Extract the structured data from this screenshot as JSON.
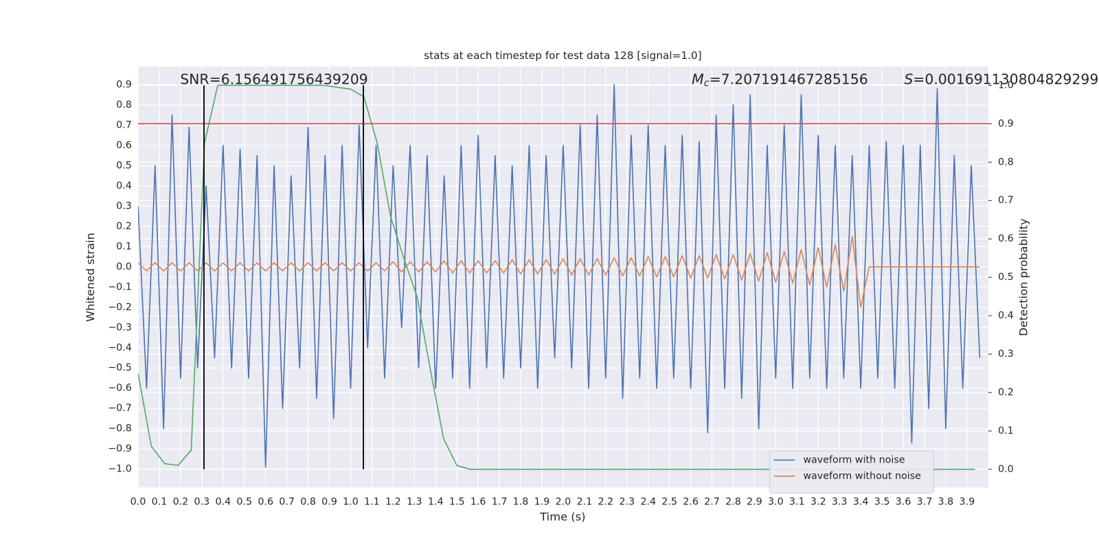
{
  "chart_data": {
    "type": "line",
    "title": "stats at each timestep for test data 128 [signal=1.0]",
    "xlabel": "Time (s)",
    "ylabel": "Whitened strain",
    "y2label": "Detection probability",
    "annotations": {
      "snr": "SNR=6.156491756439209",
      "mc": {
        "symbol": "M",
        "subscript": "c",
        "text": "=7.207191467285156"
      },
      "s": {
        "symbol": "S",
        "text": "=0.001691130804829299"
      }
    },
    "xlim": [
      0,
      4.0
    ],
    "ylim": [
      -1.09,
      0.99
    ],
    "y2lim": [
      -0.047,
      1.049
    ],
    "xticks": [
      {
        "value": 0,
        "label": "0.0"
      },
      0.1,
      0.2,
      0.3,
      0.4,
      0.5,
      0.6,
      0.7,
      0.8,
      0.9,
      {
        "value": 1,
        "label": "1.0"
      },
      1.1,
      1.2,
      1.3,
      1.4,
      1.5,
      1.6,
      1.7,
      1.8,
      1.9,
      {
        "value": 2,
        "label": "2.0"
      },
      2.1,
      2.2,
      2.3,
      2.4,
      2.5,
      2.6,
      2.7,
      2.8,
      2.9,
      {
        "value": 3,
        "label": "3.0"
      },
      3.1,
      3.2,
      3.3,
      3.4,
      3.5,
      3.6,
      3.7,
      3.8,
      3.9
    ],
    "yticks": [
      {
        "value": -1,
        "label": "−1.0"
      },
      {
        "value": -0.9,
        "label": "−0.9"
      },
      {
        "value": -0.8,
        "label": "−0.8"
      },
      {
        "value": -0.7,
        "label": "−0.7"
      },
      {
        "value": -0.6,
        "label": "−0.6"
      },
      {
        "value": -0.5,
        "label": "−0.5"
      },
      {
        "value": -0.4,
        "label": "−0.4"
      },
      {
        "value": -0.3,
        "label": "−0.3"
      },
      {
        "value": -0.2,
        "label": "−0.2"
      },
      {
        "value": -0.1,
        "label": "−0.1"
      },
      {
        "value": 0,
        "label": "0.0"
      },
      0.1,
      0.2,
      0.3,
      0.4,
      0.5,
      0.6,
      0.7,
      0.8,
      0.9
    ],
    "y2ticks": [
      {
        "value": 0,
        "label": "0.0"
      },
      0.1,
      0.2,
      0.3,
      0.4,
      0.5,
      0.6,
      0.7,
      0.8,
      0.9,
      {
        "value": 1,
        "label": "1.0"
      }
    ],
    "grid": true,
    "legend": "lower right",
    "x": [
      0,
      0.04,
      0.08,
      0.12,
      0.16,
      0.2,
      0.24,
      0.28,
      0.32,
      0.36,
      0.4,
      0.44,
      0.48,
      0.52,
      0.56,
      0.6,
      0.64,
      0.68,
      0.72,
      0.76,
      0.8,
      0.84,
      0.88,
      0.92,
      0.96,
      1.0,
      1.04,
      1.08,
      1.12,
      1.16,
      1.2,
      1.24,
      1.28,
      1.32,
      1.36,
      1.4,
      1.44,
      1.48,
      1.52,
      1.56,
      1.6,
      1.64,
      1.68,
      1.72,
      1.76,
      1.8,
      1.84,
      1.88,
      1.92,
      1.96,
      2.0,
      2.04,
      2.08,
      2.12,
      2.16,
      2.2,
      2.24,
      2.28,
      2.32,
      2.36,
      2.4,
      2.44,
      2.48,
      2.52,
      2.56,
      2.6,
      2.64,
      2.68,
      2.72,
      2.76,
      2.8,
      2.84,
      2.88,
      2.92,
      2.96,
      3.0,
      3.04,
      3.08,
      3.12,
      3.16,
      3.2,
      3.24,
      3.28,
      3.32,
      3.36,
      3.4,
      3.44,
      3.48,
      3.52,
      3.56,
      3.6,
      3.64,
      3.68,
      3.72,
      3.76,
      3.8,
      3.84,
      3.88,
      3.92,
      3.96
    ],
    "series": [
      {
        "name": "waveform with noise",
        "color": "#4c72b0",
        "values": [
          0.3,
          -0.6,
          0.5,
          -0.8,
          0.75,
          -0.55,
          0.69,
          -0.5,
          0.4,
          -0.45,
          0.6,
          -0.5,
          0.58,
          -0.55,
          0.55,
          -0.99,
          0.5,
          -0.7,
          0.45,
          -0.5,
          0.69,
          -0.65,
          0.55,
          -0.75,
          0.6,
          -0.6,
          0.7,
          -0.4,
          0.6,
          -0.55,
          0.5,
          -0.3,
          0.6,
          -0.5,
          0.55,
          -0.6,
          0.45,
          -0.55,
          0.6,
          -0.6,
          0.65,
          -0.5,
          0.55,
          -0.55,
          0.5,
          -0.5,
          0.6,
          -0.6,
          0.55,
          -0.45,
          0.6,
          -0.5,
          0.7,
          -0.6,
          0.75,
          -0.55,
          0.9,
          -0.65,
          0.65,
          -0.55,
          0.7,
          -0.6,
          0.6,
          -0.55,
          0.65,
          -0.6,
          0.62,
          -0.82,
          0.75,
          -0.6,
          0.8,
          -0.65,
          0.85,
          -0.8,
          0.6,
          -0.55,
          0.7,
          -0.6,
          0.85,
          -0.55,
          0.65,
          -0.6,
          0.6,
          -0.55,
          0.55,
          -0.6,
          0.6,
          -0.55,
          0.62,
          -0.6,
          0.6,
          -0.87,
          0.6,
          -0.7,
          0.88,
          -0.8,
          0.55,
          -0.6,
          0.5,
          -0.45
        ]
      },
      {
        "name": "waveform without noise",
        "color": "#dd8452",
        "values": [
          0.02,
          -0.02,
          0.02,
          -0.02,
          0.02,
          -0.02,
          0.02,
          -0.02,
          0.02,
          -0.02,
          0.02,
          -0.02,
          0.02,
          -0.02,
          0.02,
          -0.02,
          0.02,
          -0.02,
          0.02,
          -0.02,
          0.02,
          -0.02,
          0.02,
          -0.02,
          0.02,
          -0.02,
          0.02,
          -0.02,
          0.02,
          -0.02,
          0.025,
          -0.025,
          0.025,
          -0.025,
          0.025,
          -0.025,
          0.03,
          -0.03,
          0.03,
          -0.03,
          0.03,
          -0.03,
          0.03,
          -0.03,
          0.035,
          -0.035,
          0.035,
          -0.035,
          0.035,
          -0.035,
          0.04,
          -0.04,
          0.04,
          -0.04,
          0.04,
          -0.04,
          0.045,
          -0.045,
          0.045,
          -0.045,
          0.05,
          -0.05,
          0.05,
          -0.05,
          0.055,
          -0.055,
          0.055,
          -0.055,
          0.06,
          -0.06,
          0.06,
          -0.065,
          0.065,
          -0.07,
          0.07,
          -0.075,
          0.075,
          -0.08,
          0.085,
          -0.09,
          0.095,
          -0.1,
          0.11,
          -0.12,
          0.15,
          -0.2,
          0,
          0,
          0,
          0,
          0,
          0,
          0,
          0,
          0,
          0,
          0,
          0,
          0,
          0
        ]
      },
      {
        "color": "#55a868",
        "axis": "y2",
        "x": [
          0,
          0.0625,
          0.125,
          0.1875,
          0.25,
          0.3125,
          0.375,
          0.4375,
          0.5,
          0.5625,
          0.625,
          0.6875,
          0.75,
          0.8125,
          0.875,
          0.9375,
          1.0,
          1.0625,
          1.125,
          1.1875,
          1.25,
          1.3125,
          1.375,
          1.4375,
          1.5,
          1.5625,
          1.625,
          1.6875,
          1.75,
          1.8125,
          1.875,
          1.9375,
          2.0,
          2.0625,
          2.125,
          2.1875,
          2.25,
          2.3125,
          2.375,
          2.4375,
          2.5,
          2.5625,
          2.625,
          2.6875,
          2.75,
          2.8125,
          2.875,
          2.9375,
          3.0,
          3.0625,
          3.125,
          3.1875,
          3.25,
          3.3125,
          3.375,
          3.4375,
          3.5,
          3.5625,
          3.625,
          3.6875,
          3.75,
          3.8125,
          3.875,
          3.9375
        ],
        "values": [
          0.25,
          0.06,
          0.015,
          0.01,
          0.05,
          0.85,
          1.0,
          1.0,
          1.0,
          1.0,
          1.0,
          1.0,
          1.0,
          1.0,
          1.0,
          0.995,
          0.99,
          0.97,
          0.85,
          0.66,
          0.55,
          0.45,
          0.26,
          0.08,
          0.01,
          0,
          0,
          0,
          0,
          0,
          0,
          0,
          0,
          0,
          0,
          0,
          0,
          0,
          0,
          0,
          0,
          0,
          0,
          0,
          0,
          0,
          0,
          0,
          0,
          0,
          0,
          0,
          0,
          0,
          0,
          0,
          0,
          0,
          0,
          0,
          0,
          0,
          0,
          0
        ]
      }
    ],
    "threshold": {
      "value": 0.9,
      "axis": "y2",
      "color": "#c44e52"
    },
    "vlines": {
      "x": [
        0.31,
        1.06
      ],
      "y2": [
        0,
        1
      ],
      "color": "#000000"
    }
  }
}
